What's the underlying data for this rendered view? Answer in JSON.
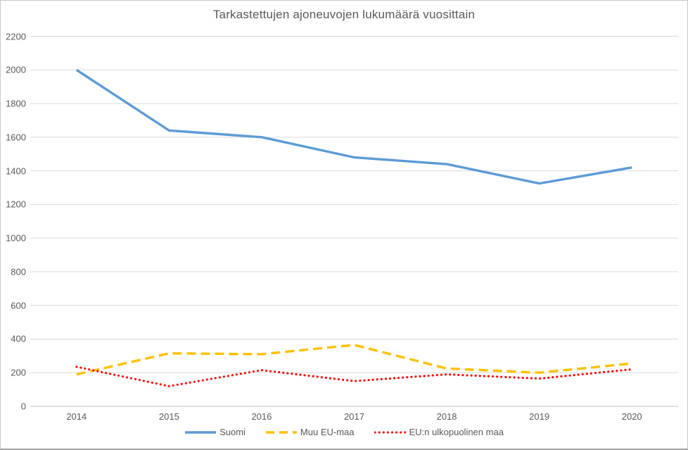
{
  "chart_data": {
    "type": "line",
    "title": "Tarkastettujen ajoneuvojen lukumäärä vuosittain",
    "categories": [
      "2014",
      "2015",
      "2016",
      "2017",
      "2018",
      "2019",
      "2020"
    ],
    "series": [
      {
        "name": "Suomi",
        "color": "#5B9BD5",
        "style": "solid",
        "values": [
          2000,
          1640,
          1600,
          1480,
          1440,
          1325,
          1420
        ]
      },
      {
        "name": "Muu EU-maa",
        "color": "#FFC000",
        "style": "dashed",
        "values": [
          190,
          315,
          310,
          365,
          225,
          200,
          255
        ]
      },
      {
        "name": "EU:n ulkopuolinen maa",
        "color": "#FF0000",
        "style": "dotted",
        "values": [
          235,
          120,
          215,
          150,
          190,
          165,
          220
        ]
      }
    ],
    "xlabel": "",
    "ylabel": "",
    "ylim": [
      0,
      2200
    ],
    "ytick_labels": [
      "0",
      "200",
      "400",
      "600",
      "800",
      "1000",
      "1200",
      "1400",
      "1600",
      "1800",
      "2000",
      "2200"
    ],
    "grid": true,
    "legend_position": "bottom",
    "colors": {
      "text": "#595959",
      "gridline": "#D9D9D9",
      "axis_line": "#BFBFBF",
      "background": "#FFFFFF",
      "frame_border": "#C8C8C8"
    }
  }
}
